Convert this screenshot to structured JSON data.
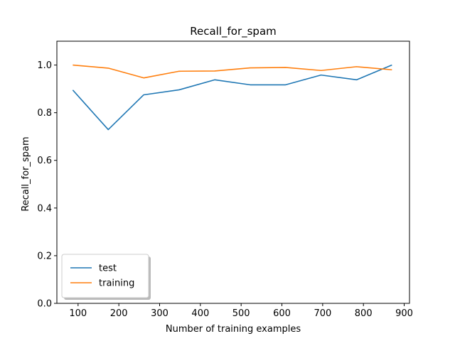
{
  "chart_data": {
    "type": "line",
    "title": "Recall_for_spam",
    "xlabel": "Number of training examples",
    "ylabel": "Recall_for_spam",
    "xlim": [
      48,
      913
    ],
    "ylim": [
      0.0,
      1.1
    ],
    "xticks": [
      100,
      200,
      300,
      400,
      500,
      600,
      700,
      800,
      900
    ],
    "xtick_labels": [
      "100",
      "200",
      "300",
      "400",
      "500",
      "600",
      "700",
      "800",
      "900"
    ],
    "yticks": [
      0.0,
      0.2,
      0.4,
      0.6,
      0.8,
      1.0
    ],
    "ytick_labels": [
      "0.0",
      "0.2",
      "0.4",
      "0.6",
      "0.8",
      "1.0"
    ],
    "grid": false,
    "legend_position": "lower-left",
    "x": [
      87,
      174,
      261,
      348,
      435,
      522,
      609,
      696,
      783,
      870
    ],
    "series": [
      {
        "name": "test",
        "color": "#1f77b4",
        "values": [
          0.895,
          0.729,
          0.875,
          0.896,
          0.938,
          0.917,
          0.917,
          0.958,
          0.938,
          1.0
        ]
      },
      {
        "name": "training",
        "color": "#ff7f0e",
        "values": [
          1.0,
          0.987,
          0.946,
          0.974,
          0.975,
          0.988,
          0.99,
          0.977,
          0.993,
          0.98
        ]
      }
    ]
  }
}
